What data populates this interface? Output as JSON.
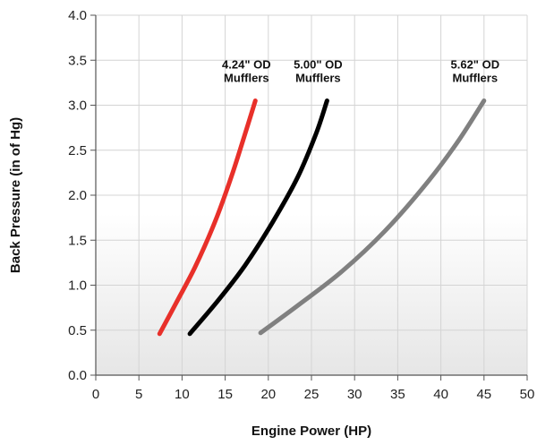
{
  "chart_data": {
    "type": "line",
    "title": "",
    "xlabel": "Engine Power (HP)",
    "ylabel": "Back Pressure (in of Hg)",
    "xlim": [
      0,
      50
    ],
    "ylim": [
      0,
      4
    ],
    "xticks": [
      0,
      5,
      10,
      15,
      20,
      25,
      30,
      35,
      40,
      45,
      50
    ],
    "yticks": [
      0.0,
      0.5,
      1.0,
      1.5,
      2.0,
      2.5,
      3.0,
      3.5,
      4.0
    ],
    "xtick_labels": [
      "0",
      "5",
      "10",
      "15",
      "20",
      "25",
      "30",
      "35",
      "40",
      "45",
      "50"
    ],
    "ytick_labels": [
      "0.0",
      "0.5",
      "1.0",
      "1.5",
      "2.0",
      "2.5",
      "3.0",
      "3.5",
      "4.0"
    ],
    "grid": true,
    "legend": "none (series labelled directly above line ends)",
    "background": "light gray vertical gradient below y=1.6",
    "series": [
      {
        "name": "4.24\" OD Mufflers",
        "label_lines": [
          "4.24\" OD",
          "Mufflers"
        ],
        "color": "#e8302a",
        "x": [
          7.4,
          9.3,
          11.5,
          13.8,
          15.7,
          17.2,
          18.5
        ],
        "y": [
          0.46,
          0.8,
          1.2,
          1.7,
          2.2,
          2.65,
          3.05
        ]
      },
      {
        "name": "5.00\" OD Mufflers",
        "label_lines": [
          "5.00\" OD",
          "Mufflers"
        ],
        "color": "#000000",
        "x": [
          10.9,
          14.1,
          17.3,
          20.5,
          23.4,
          25.6,
          26.8
        ],
        "y": [
          0.46,
          0.82,
          1.22,
          1.7,
          2.2,
          2.7,
          3.05
        ]
      },
      {
        "name": "5.62\" OD Mufflers",
        "label_lines": [
          "5.62\" OD",
          "Mufflers"
        ],
        "color": "#808080",
        "x": [
          19.1,
          23.5,
          28.5,
          33.5,
          38.5,
          42.0,
          45.0
        ],
        "y": [
          0.47,
          0.78,
          1.15,
          1.6,
          2.15,
          2.6,
          3.05
        ]
      }
    ]
  }
}
